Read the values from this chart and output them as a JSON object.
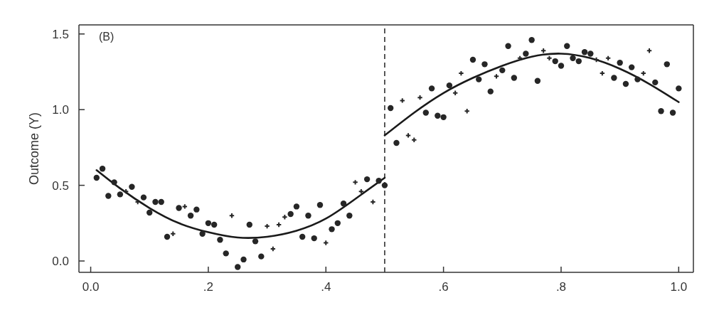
{
  "chart_data": {
    "type": "scatter",
    "ylabel": "Outcome (Y)",
    "annotations": [
      "(B)"
    ],
    "xlim": [
      -0.02,
      1.025
    ],
    "ylim": [
      -0.075,
      1.56
    ],
    "xticks": [
      {
        "value": 0,
        "label": "0.0"
      },
      {
        "value": 0.2,
        "label": ".2"
      },
      {
        "value": 0.4,
        "label": ".4"
      },
      {
        "value": 0.6,
        "label": ".6"
      },
      {
        "value": 0.8,
        "label": ".8"
      },
      {
        "value": 1,
        "label": "1.0"
      }
    ],
    "yticks": [
      {
        "value": 0,
        "label": "0.0"
      },
      {
        "value": 0.5,
        "label": "0.5"
      },
      {
        "value": 1,
        "label": "1.0"
      },
      {
        "value": 1.5,
        "label": "1.5"
      }
    ],
    "ref_lines": [
      {
        "axis": "x",
        "value": 0.5,
        "color": "#222222",
        "line_style": "dashed"
      }
    ],
    "series": [
      {
        "type": "scatter",
        "marker": "circle",
        "color": "#262626",
        "x": [
          0.01,
          0.02,
          0.03,
          0.04,
          0.05,
          0.07,
          0.09,
          0.1,
          0.11,
          0.12,
          0.13,
          0.15,
          0.17,
          0.18,
          0.19,
          0.2,
          0.21,
          0.22,
          0.23,
          0.25,
          0.26,
          0.27,
          0.28,
          0.29,
          0.34,
          0.35,
          0.36,
          0.37,
          0.38,
          0.39,
          0.41,
          0.42,
          0.43,
          0.44,
          0.47,
          0.49,
          0.5,
          0.51,
          0.52,
          0.57,
          0.58,
          0.59,
          0.6,
          0.61,
          0.65,
          0.66,
          0.67,
          0.68,
          0.7,
          0.71,
          0.72,
          0.74,
          0.75,
          0.76,
          0.79,
          0.8,
          0.81,
          0.82,
          0.83,
          0.84,
          0.85,
          0.89,
          0.9,
          0.91,
          0.92,
          0.93,
          0.96,
          0.97,
          0.98,
          0.99,
          1.0
        ],
        "values": [
          0.55,
          0.61,
          0.43,
          0.52,
          0.44,
          0.49,
          0.42,
          0.32,
          0.39,
          0.39,
          0.16,
          0.35,
          0.3,
          0.34,
          0.18,
          0.25,
          0.24,
          0.14,
          0.05,
          -0.04,
          0.01,
          0.24,
          0.13,
          0.03,
          0.31,
          0.36,
          0.16,
          0.3,
          0.15,
          0.37,
          0.21,
          0.25,
          0.38,
          0.3,
          0.54,
          0.53,
          0.5,
          1.01,
          0.78,
          0.98,
          1.14,
          0.96,
          0.95,
          1.16,
          1.33,
          1.2,
          1.3,
          1.12,
          1.26,
          1.42,
          1.21,
          1.37,
          1.46,
          1.19,
          1.32,
          1.29,
          1.42,
          1.34,
          1.32,
          1.38,
          1.37,
          1.21,
          1.31,
          1.17,
          1.28,
          1.2,
          1.18,
          0.99,
          1.3,
          0.98,
          1.14
        ]
      },
      {
        "type": "scatter",
        "marker": "cross",
        "color": "#262626",
        "x": [
          0.06,
          0.08,
          0.14,
          0.16,
          0.24,
          0.3,
          0.31,
          0.32,
          0.33,
          0.4,
          0.45,
          0.46,
          0.48,
          0.53,
          0.54,
          0.55,
          0.56,
          0.62,
          0.63,
          0.64,
          0.69,
          0.73,
          0.77,
          0.78,
          0.86,
          0.87,
          0.88,
          0.94,
          0.95
        ],
        "values": [
          0.46,
          0.39,
          0.18,
          0.36,
          0.3,
          0.23,
          0.08,
          0.24,
          0.29,
          0.12,
          0.52,
          0.46,
          0.39,
          1.06,
          0.83,
          0.8,
          1.08,
          1.11,
          1.24,
          0.99,
          1.22,
          1.34,
          1.39,
          1.34,
          1.33,
          1.24,
          1.34,
          1.24,
          1.39
        ]
      },
      {
        "type": "line",
        "marker": "none",
        "color": "#1a1a1a",
        "x": [
          0.01,
          0.05,
          0.1,
          0.15,
          0.2,
          0.25,
          0.3,
          0.35,
          0.4,
          0.45,
          0.5
        ],
        "values": [
          0.6,
          0.48,
          0.35,
          0.25,
          0.19,
          0.155,
          0.16,
          0.2,
          0.28,
          0.41,
          0.55
        ]
      },
      {
        "type": "line",
        "marker": "none",
        "color": "#1a1a1a",
        "x": [
          0.5,
          0.55,
          0.6,
          0.65,
          0.7,
          0.75,
          0.8,
          0.85,
          0.9,
          0.95,
          1.0
        ],
        "values": [
          0.83,
          0.98,
          1.11,
          1.21,
          1.29,
          1.35,
          1.37,
          1.34,
          1.27,
          1.17,
          1.05
        ]
      }
    ]
  }
}
